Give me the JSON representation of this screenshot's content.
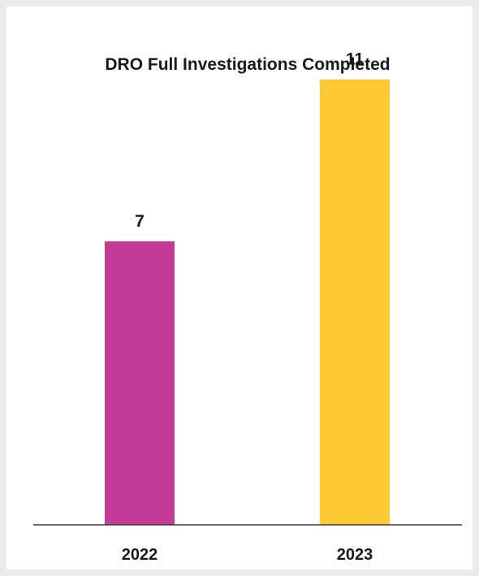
{
  "chart_data": {
    "type": "bar",
    "title": "DRO Full Investigations Completed",
    "categories": [
      "2022",
      "2023"
    ],
    "values": [
      7,
      11
    ],
    "colors": [
      "#c43a94",
      "#ffc933"
    ],
    "xlabel": "",
    "ylabel": "",
    "ylim": [
      0,
      12.8
    ],
    "grid": false,
    "legend": "none"
  }
}
